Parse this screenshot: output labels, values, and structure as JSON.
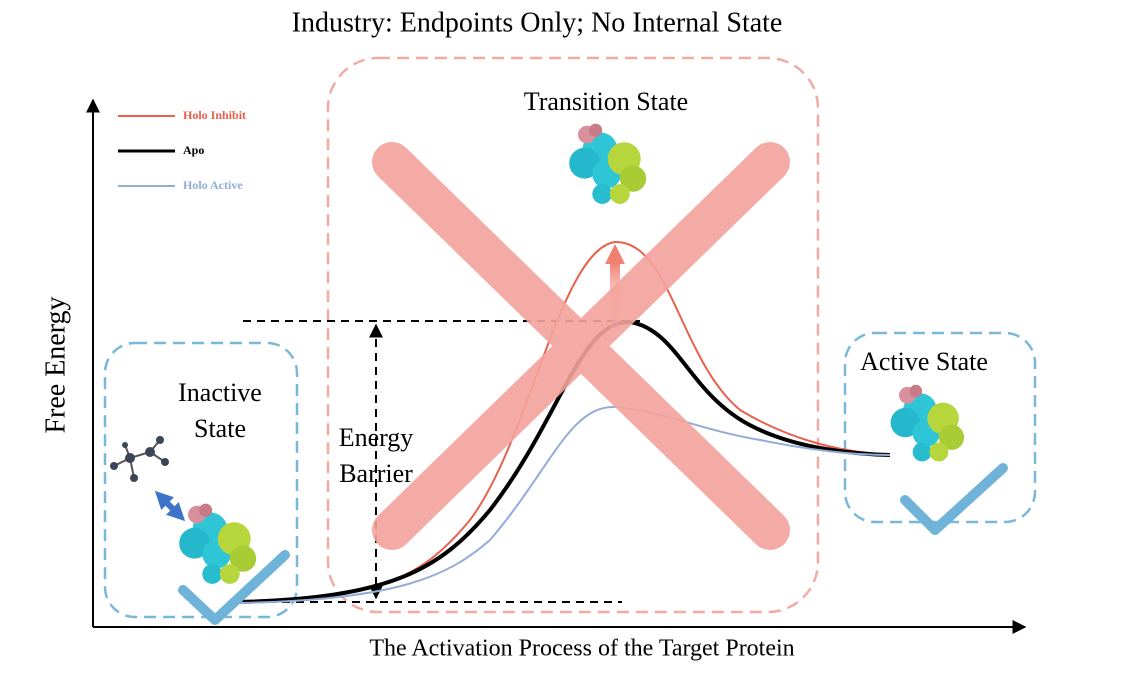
{
  "title": "Industry: Endpoints Only; No Internal State",
  "y_axis_label": "Free Energy",
  "x_axis_label": "The Activation Process of the Target Protein",
  "legend": [
    {
      "name": "Holo Inhibit",
      "color": "#e8604c"
    },
    {
      "name": "Apo",
      "color": "#000000"
    },
    {
      "name": "Holo Active",
      "color": "#93acd8"
    }
  ],
  "states": {
    "inactive": [
      "Inactive",
      "State"
    ],
    "transition": "Transition State",
    "active": "Active State",
    "barrier": [
      "Energy",
      "Barrier"
    ]
  }
}
